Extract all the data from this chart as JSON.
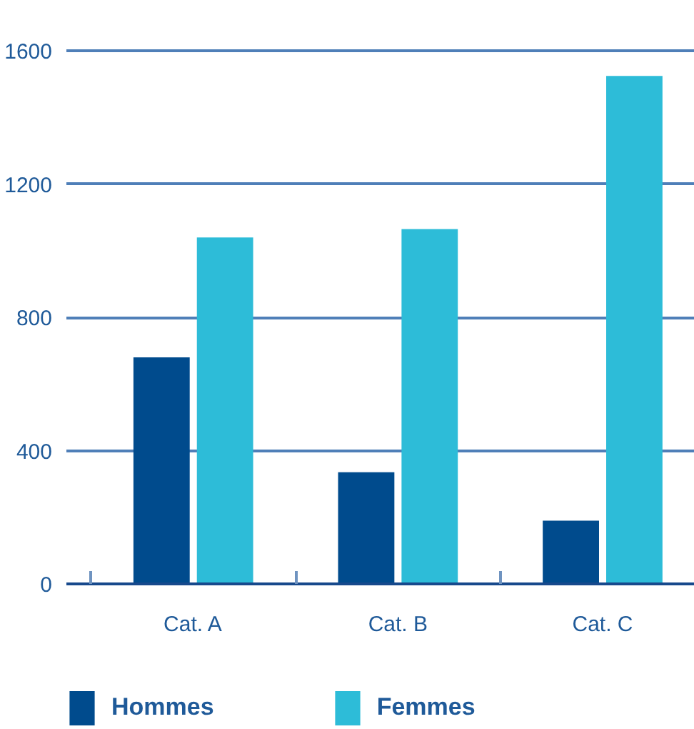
{
  "chart_data": {
    "type": "bar",
    "categories": [
      "Cat. A",
      "Cat. B",
      "Cat. C"
    ],
    "series": [
      {
        "name": "Hommes",
        "color": "#004b8d",
        "values": [
          680,
          335,
          190
        ]
      },
      {
        "name": "Femmes",
        "color": "#2dbcd8",
        "values": [
          1040,
          1065,
          1525
        ]
      }
    ],
    "ylim": [
      0,
      1600
    ],
    "yticks": [
      0,
      400,
      800,
      1200,
      1600
    ],
    "grid": "y",
    "legend": "bottom"
  }
}
